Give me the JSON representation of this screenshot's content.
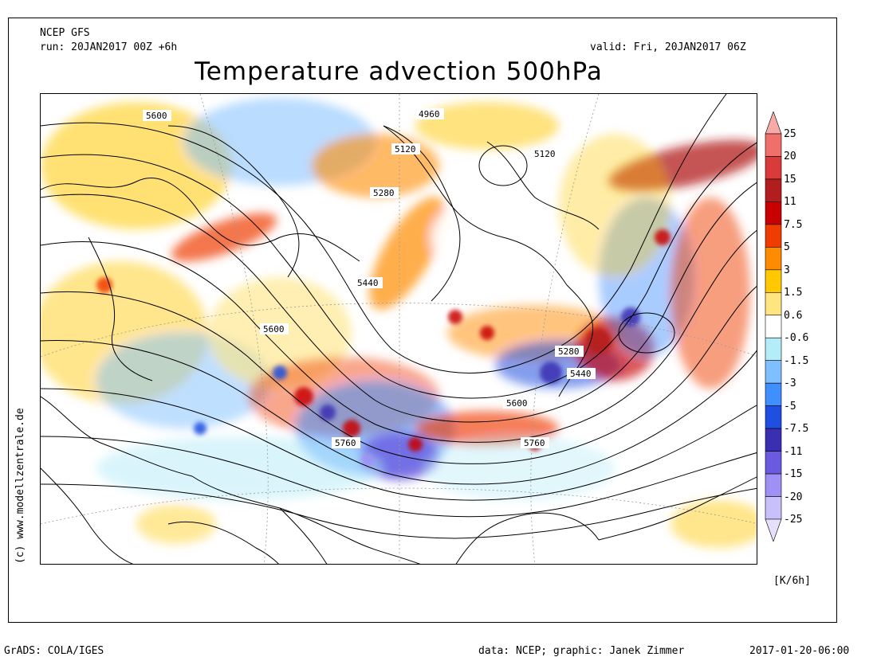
{
  "header": {
    "model": "NCEP GFS",
    "run": "run: 20JAN2017 00Z +6h",
    "valid": "valid: Fri, 20JAN2017 06Z",
    "title": "Temperature advection 500hPa"
  },
  "credits": {
    "website": "(c) www.modellzentrale.de",
    "grads": "GrADS: COLA/IGES",
    "data": "data: NCEP; graphic: Janek Zimmer",
    "timestamp": "2017-01-20-06:00"
  },
  "legend": {
    "units": "[K/6h]",
    "levels": [
      {
        "label": "25",
        "color": "#f7aaa6"
      },
      {
        "label": "20",
        "color": "#ef6f6b"
      },
      {
        "label": "15",
        "color": "#d93b3b"
      },
      {
        "label": "11",
        "color": "#b21d1d"
      },
      {
        "label": "7.5",
        "color": "#c80000"
      },
      {
        "label": "5",
        "color": "#f03c00"
      },
      {
        "label": "3",
        "color": "#ff8c00"
      },
      {
        "label": "1.5",
        "color": "#ffc800"
      },
      {
        "label": "0.6",
        "color": "#ffe57f"
      },
      {
        "label": "-0.6",
        "color": "#ffffff"
      },
      {
        "label": "-1.5",
        "color": "#b4ecf8"
      },
      {
        "label": "-3",
        "color": "#7fbfff"
      },
      {
        "label": "-5",
        "color": "#3f8fff"
      },
      {
        "label": "-7.5",
        "color": "#1f4fe0"
      },
      {
        "label": "-11",
        "color": "#3a2fb0"
      },
      {
        "label": "-15",
        "color": "#6a5ae0"
      },
      {
        "label": "-20",
        "color": "#9f90f5"
      },
      {
        "label": "-25",
        "color": "#c8c0fa"
      },
      {
        "label": "",
        "color": "#e6e0fd"
      }
    ]
  },
  "contours": {
    "labels": [
      "5600",
      "4960",
      "5120",
      "5120",
      "5280",
      "5440",
      "5600",
      "5280",
      "5440",
      "5600",
      "5760",
      "5760"
    ]
  }
}
